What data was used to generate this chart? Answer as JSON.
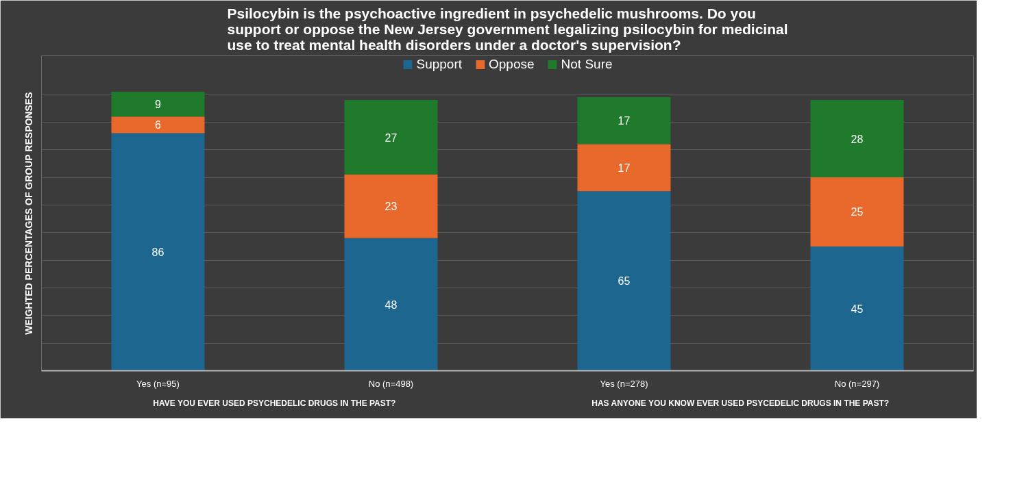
{
  "chart_data": {
    "type": "bar",
    "stacked": true,
    "title": "Psilocybin is the psychoactive ingredient in psychedelic mushrooms. Do you\nsupport or oppose the New Jersey government legalizing psilocybin for medicinal\nuse to treat mental health disorders under a doctor's supervision?",
    "ylabel": "WEIGHTED PERCENTAGES OF GROUP RESPONSES",
    "categories": [
      "Yes (n=95)",
      "No (n=498)",
      "Yes (n=278)",
      "No (n=297)"
    ],
    "series": [
      {
        "name": "Support",
        "color": "#1c6690",
        "values": [
          86,
          48,
          65,
          45
        ]
      },
      {
        "name": "Oppose",
        "color": "#e8692b",
        "values": [
          6,
          23,
          17,
          25
        ]
      },
      {
        "name": "Not Sure",
        "color": "#1f7a2c",
        "values": [
          9,
          27,
          17,
          28
        ]
      }
    ],
    "ylim": [
      0,
      114
    ],
    "yticks": [
      {
        "value": 0,
        "label": null
      },
      {
        "value": 10,
        "label": null
      },
      {
        "value": 20,
        "label": null
      },
      {
        "value": 30,
        "label": null
      },
      {
        "value": 40,
        "label": null
      },
      {
        "value": 50,
        "label": null
      },
      {
        "value": 60,
        "label": null
      },
      {
        "value": 70,
        "label": null
      },
      {
        "value": 80,
        "label": null
      },
      {
        "value": 90,
        "label": null
      },
      {
        "value": 100,
        "label": null
      }
    ],
    "tick_labels": "x",
    "grid": "y",
    "legend": "top",
    "data_labels": true,
    "annotations": [
      "HAVE YOU EVER USED PSYCHEDELIC DRUGS IN THE PAST?",
      "HAS ANYONE YOU KNOW EVER USED PSYCEDELIC DRUGS IN THE PAST?"
    ]
  }
}
